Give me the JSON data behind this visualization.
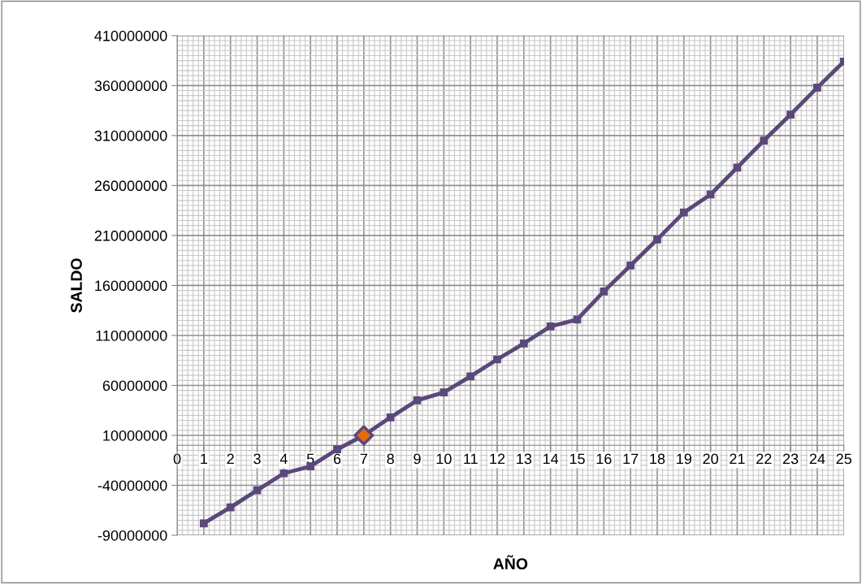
{
  "chart_data": {
    "type": "line",
    "xlabel": "AÑO",
    "ylabel": "SALDO",
    "x": [
      1,
      2,
      3,
      4,
      5,
      6,
      7,
      8,
      9,
      10,
      11,
      12,
      13,
      14,
      15,
      16,
      17,
      18,
      19,
      20,
      21,
      22,
      23,
      24,
      25
    ],
    "series": [
      {
        "color": "#5b487a",
        "marker": "square",
        "values": [
          -78000000,
          -62000000,
          -45000000,
          -28000000,
          -21000000,
          -4000000,
          10000000,
          28000000,
          45000000,
          53000000,
          69000000,
          86000000,
          102000000,
          119000000,
          126000000,
          154000000,
          180000000,
          206000000,
          233000000,
          251000000,
          278000000,
          305000000,
          331000000,
          358000000,
          384000000
        ]
      },
      {
        "type": "scatter",
        "color": "#e46c0a",
        "marker": "diamond",
        "x": [
          7
        ],
        "values": [
          10000000
        ]
      }
    ],
    "xlim": [
      0,
      25
    ],
    "xticks": [
      0,
      1,
      2,
      3,
      4,
      5,
      6,
      7,
      8,
      9,
      10,
      11,
      12,
      13,
      14,
      15,
      16,
      17,
      18,
      19,
      20,
      21,
      22,
      23,
      24,
      25
    ],
    "ylim": [
      -90000000,
      410000000
    ],
    "yticks": [
      -90000000,
      -40000000,
      10000000,
      60000000,
      110000000,
      160000000,
      210000000,
      260000000,
      310000000,
      360000000,
      410000000
    ],
    "grid": true,
    "legend": false
  }
}
